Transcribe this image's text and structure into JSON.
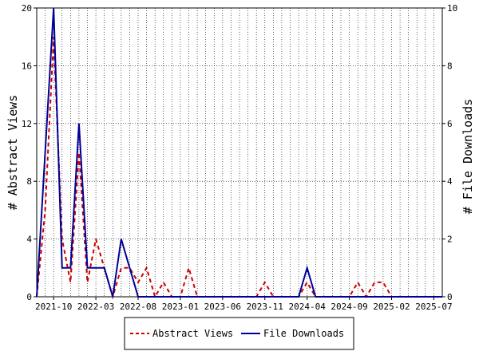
{
  "chart_data": {
    "type": "line",
    "x_tick_labels": [
      "2021-10",
      "2022-03",
      "2022-08",
      "2023-01",
      "2023-06",
      "2023-11",
      "2024-04",
      "2024-09",
      "2025-02",
      "2025-07"
    ],
    "x_range_months": [
      "2021-08",
      "2025-08"
    ],
    "y_left": {
      "label": "# Abstract Views",
      "ticks": [
        0,
        4,
        8,
        12,
        16,
        20
      ],
      "lim": [
        0,
        20
      ]
    },
    "y_right": {
      "label": "# File Downloads",
      "ticks": [
        0,
        2,
        4,
        6,
        8,
        10
      ],
      "lim": [
        0,
        10
      ]
    },
    "grid": true,
    "legend_position": "bottom-center",
    "series": [
      {
        "name": "Abstract Views",
        "axis": "left",
        "color": "#cc0000",
        "style": "dashed",
        "x": [
          "2021-08",
          "2021-09",
          "2021-10",
          "2021-11",
          "2021-12",
          "2022-01",
          "2022-02",
          "2022-03",
          "2022-04",
          "2022-05",
          "2022-06",
          "2022-07",
          "2022-08",
          "2022-09",
          "2022-10",
          "2022-11",
          "2022-12",
          "2023-01",
          "2023-02",
          "2023-03",
          "2023-04",
          "2023-10",
          "2023-11",
          "2023-12",
          "2024-03",
          "2024-04",
          "2024-05",
          "2024-09",
          "2024-10",
          "2024-11",
          "2024-12",
          "2025-01",
          "2025-02",
          "2025-03",
          "2025-08"
        ],
        "y": [
          0,
          6,
          18,
          4,
          1,
          10,
          1,
          4,
          2,
          0,
          2,
          2,
          1,
          2,
          0,
          1,
          0,
          0,
          2,
          0,
          0,
          0,
          1,
          0,
          0,
          1,
          0,
          0,
          1,
          0,
          1,
          1,
          0,
          0,
          0
        ]
      },
      {
        "name": "File Downloads",
        "axis": "right",
        "color": "#000099",
        "style": "solid",
        "x": [
          "2021-08",
          "2021-09",
          "2021-10",
          "2021-11",
          "2021-12",
          "2022-01",
          "2022-02",
          "2022-03",
          "2022-04",
          "2022-05",
          "2022-06",
          "2022-07",
          "2022-08",
          "2024-03",
          "2024-04",
          "2024-05",
          "2025-08"
        ],
        "y": [
          0,
          5,
          10,
          1,
          1,
          6,
          1,
          1,
          1,
          0,
          2,
          1,
          0,
          0,
          1,
          0,
          0
        ]
      }
    ]
  }
}
